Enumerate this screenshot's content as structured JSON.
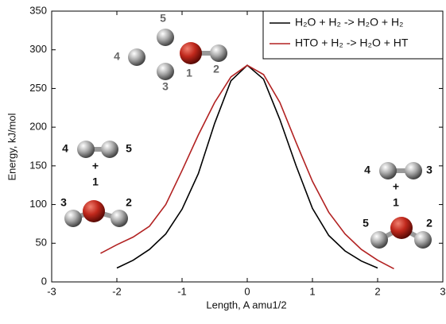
{
  "chart_data": {
    "type": "line",
    "xlabel": "Length, A amu1/2",
    "ylabel": "Energy, kJ/mol",
    "xlim": [
      -3,
      3
    ],
    "xticks": [
      -3,
      -2,
      -1,
      0,
      1,
      2,
      3
    ],
    "ylim": [
      0,
      350
    ],
    "yticks": [
      0,
      50,
      100,
      150,
      200,
      250,
      300,
      350
    ],
    "grid": false,
    "legend": "upper right",
    "series": [
      {
        "name": "H₂O + H₂ -> H₂O + H₂",
        "color": "#000000",
        "x": [
          -2,
          -1.75,
          -1.5,
          -1.25,
          -1,
          -0.75,
          -0.5,
          -0.25,
          0,
          0.25,
          0.5,
          0.75,
          1,
          1.25,
          1.5,
          1.75,
          2
        ],
        "values": [
          18,
          28,
          42,
          62,
          94,
          140,
          205,
          260,
          280,
          262,
          210,
          150,
          95,
          60,
          40,
          27,
          18
        ]
      },
      {
        "name": "HTO + H₂ -> H₂O + HT",
        "color": "#b22222",
        "x": [
          -2.25,
          -2,
          -1.75,
          -1.5,
          -1.25,
          -1,
          -0.75,
          -0.5,
          -0.25,
          0,
          0.25,
          0.5,
          0.75,
          1,
          1.25,
          1.5,
          1.75,
          2,
          2.25
        ],
        "values": [
          37,
          48,
          58,
          72,
          100,
          144,
          190,
          232,
          265,
          280,
          268,
          232,
          180,
          130,
          90,
          62,
          42,
          28,
          17
        ]
      }
    ],
    "annotations": [
      "5",
      "4",
      "1",
      "2",
      "3",
      "4",
      "5",
      "+",
      "1",
      "3",
      "2",
      "4",
      "3",
      "+",
      "1",
      "5",
      "2"
    ]
  }
}
